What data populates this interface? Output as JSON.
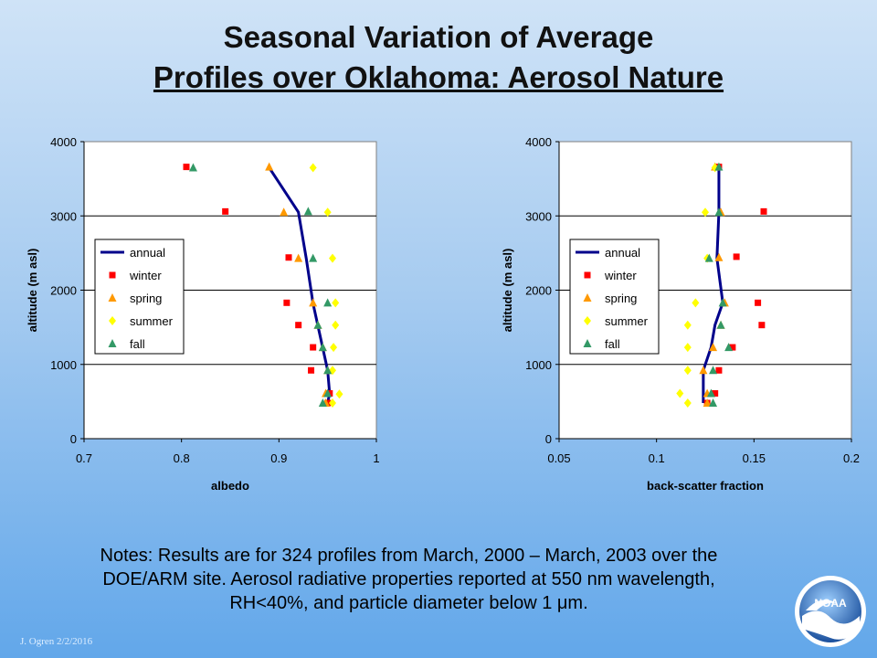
{
  "title": {
    "line1": "Seasonal Variation of Average",
    "line2": "Profiles over Oklahoma: Aerosol Nature"
  },
  "notes": {
    "line1": "Notes:  Results are for 324 profiles from March, 2000 – March, 2003 over the",
    "line2": "DOE/ARM site.  Aerosol radiative properties reported at 550 nm wavelength,",
    "line3_pre": "RH<40%, and particle diameter below 1 ",
    "line3_unit": "μm."
  },
  "footer": "J. Ogren  2/2/2016",
  "logo": {
    "text": "NOAA",
    "icon": "noaa-logo"
  },
  "colors": {
    "annual": "#00008b",
    "winter": "#ff0000",
    "spring": "#ff9900",
    "summer": "#ffff00",
    "fall": "#339966"
  },
  "chart_data": [
    {
      "type": "scatter",
      "xlabel": "albedo",
      "ylabel": "altitude (m asl)",
      "xlim": [
        0.7,
        1.0
      ],
      "ylim": [
        0,
        4000
      ],
      "xticks": [
        "0.7",
        "0.8",
        "0.9",
        "1"
      ],
      "yticks": [
        "0",
        "1000",
        "2000",
        "3000",
        "4000"
      ],
      "grid": "horizontal",
      "legend_position": "left",
      "series": [
        {
          "name": "annual",
          "marker": "line",
          "points": [
            [
              0.89,
              3650
            ],
            [
              0.92,
              3050
            ],
            [
              0.928,
              2430
            ],
            [
              0.935,
              1820
            ],
            [
              0.94,
              1520
            ],
            [
              0.945,
              1220
            ],
            [
              0.95,
              920
            ],
            [
              0.952,
              610
            ],
            [
              0.95,
              480
            ]
          ]
        },
        {
          "name": "winter",
          "marker": "square",
          "points": [
            [
              0.805,
              3660
            ],
            [
              0.845,
              3060
            ],
            [
              0.91,
              2440
            ],
            [
              0.908,
              1830
            ],
            [
              0.92,
              1530
            ],
            [
              0.935,
              1230
            ],
            [
              0.933,
              920
            ],
            [
              0.952,
              610
            ],
            [
              0.95,
              480
            ]
          ]
        },
        {
          "name": "spring",
          "marker": "triangle",
          "points": [
            [
              0.89,
              3660
            ],
            [
              0.905,
              3050
            ],
            [
              0.92,
              2430
            ],
            [
              0.935,
              1830
            ],
            [
              0.94,
              1530
            ],
            [
              0.945,
              1230
            ],
            [
              0.95,
              920
            ],
            [
              0.948,
              610
            ],
            [
              0.948,
              480
            ]
          ]
        },
        {
          "name": "summer",
          "marker": "diamond",
          "points": [
            [
              0.935,
              3650
            ],
            [
              0.95,
              3050
            ],
            [
              0.955,
              2430
            ],
            [
              0.958,
              1830
            ],
            [
              0.958,
              1530
            ],
            [
              0.956,
              1230
            ],
            [
              0.955,
              920
            ],
            [
              0.962,
              600
            ],
            [
              0.955,
              480
            ]
          ]
        },
        {
          "name": "fall",
          "marker": "triangle",
          "points": [
            [
              0.812,
              3650
            ],
            [
              0.93,
              3060
            ],
            [
              0.935,
              2430
            ],
            [
              0.95,
              1830
            ],
            [
              0.94,
              1530
            ],
            [
              0.945,
              1230
            ],
            [
              0.95,
              920
            ],
            [
              0.95,
              610
            ],
            [
              0.945,
              480
            ]
          ]
        }
      ]
    },
    {
      "type": "scatter",
      "xlabel": "back-scatter fraction",
      "ylabel": "altitude (m asl)",
      "xlim": [
        0.05,
        0.2
      ],
      "ylim": [
        0,
        4000
      ],
      "xticks": [
        "0.05",
        "0.1",
        "0.15",
        "0.2"
      ],
      "yticks": [
        "0",
        "1000",
        "2000",
        "3000",
        "4000"
      ],
      "grid": "horizontal",
      "legend_position": "left",
      "series": [
        {
          "name": "annual",
          "marker": "line",
          "points": [
            [
              0.132,
              3650
            ],
            [
              0.132,
              3050
            ],
            [
              0.131,
              2430
            ],
            [
              0.134,
              1830
            ],
            [
              0.13,
              1530
            ],
            [
              0.128,
              1230
            ],
            [
              0.124,
              920
            ],
            [
              0.124,
              610
            ],
            [
              0.124,
              480
            ]
          ]
        },
        {
          "name": "winter",
          "marker": "square",
          "points": [
            [
              0.132,
              3660
            ],
            [
              0.155,
              3060
            ],
            [
              0.141,
              2450
            ],
            [
              0.152,
              1830
            ],
            [
              0.154,
              1530
            ],
            [
              0.139,
              1230
            ],
            [
              0.132,
              920
            ],
            [
              0.13,
              610
            ],
            [
              0.126,
              480
            ]
          ]
        },
        {
          "name": "spring",
          "marker": "triangle",
          "points": [
            [
              0.13,
              3660
            ],
            [
              0.133,
              3050
            ],
            [
              0.132,
              2440
            ],
            [
              0.135,
              1830
            ],
            [
              0.133,
              1530
            ],
            [
              0.129,
              1230
            ],
            [
              0.124,
              920
            ],
            [
              0.126,
              610
            ],
            [
              0.126,
              480
            ]
          ]
        },
        {
          "name": "summer",
          "marker": "diamond",
          "points": [
            [
              0.13,
              3650
            ],
            [
              0.125,
              3050
            ],
            [
              0.126,
              2430
            ],
            [
              0.12,
              1830
            ],
            [
              0.116,
              1530
            ],
            [
              0.116,
              1230
            ],
            [
              0.116,
              920
            ],
            [
              0.112,
              610
            ],
            [
              0.116,
              480
            ]
          ]
        },
        {
          "name": "fall",
          "marker": "triangle",
          "points": [
            [
              0.132,
              3660
            ],
            [
              0.132,
              3050
            ],
            [
              0.127,
              2430
            ],
            [
              0.134,
              1830
            ],
            [
              0.133,
              1530
            ],
            [
              0.137,
              1230
            ],
            [
              0.129,
              920
            ],
            [
              0.128,
              610
            ],
            [
              0.129,
              480
            ]
          ]
        }
      ]
    }
  ]
}
